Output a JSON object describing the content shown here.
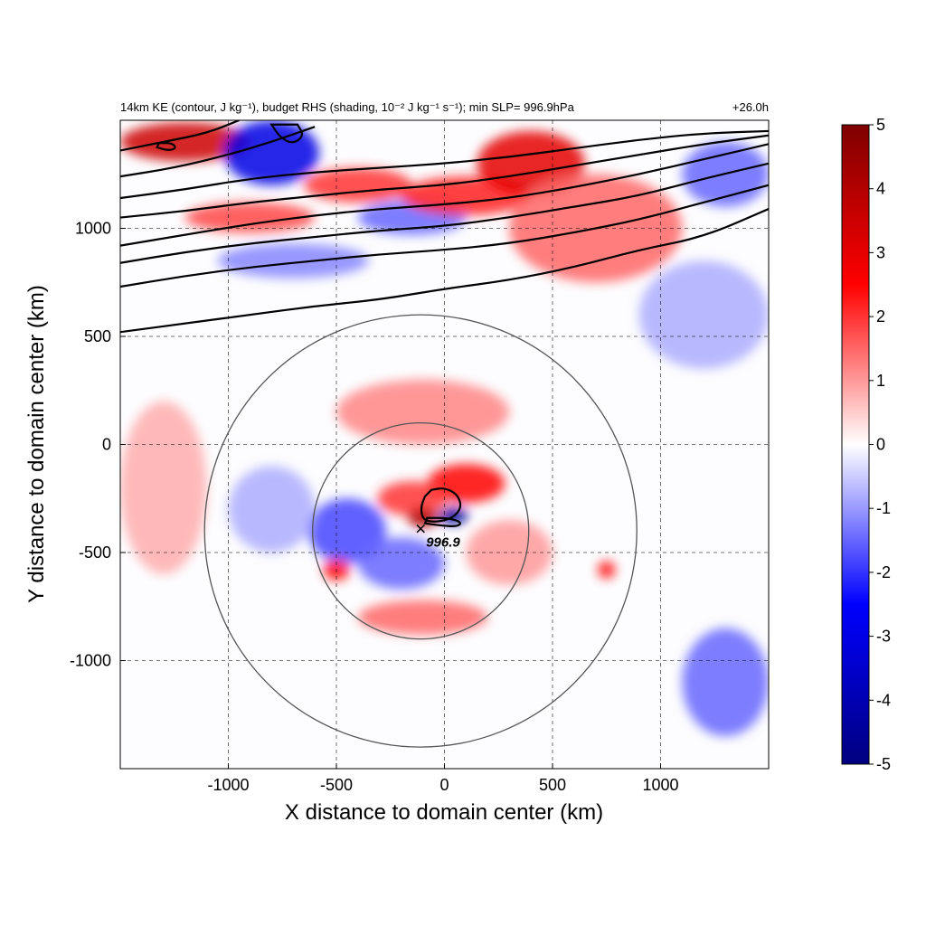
{
  "chart_data": {
    "type": "heatmap",
    "title": "14km KE (contour, J kg⁻¹), budget RHS (shading, 10⁻² J kg⁻¹ s⁻¹); min SLP= 996.9hPa",
    "title_right": "+26.0h",
    "xlabel": "X distance to domain center (km)",
    "ylabel": "Y distance to domain center (km)",
    "xlim": [
      -1500,
      1500
    ],
    "ylim": [
      -1500,
      1500
    ],
    "x_ticks": [
      -1000,
      -500,
      0,
      500,
      1000
    ],
    "y_ticks": [
      1000,
      500,
      0,
      -500,
      -1000
    ],
    "x_tick_labels": [
      "-1000",
      "-500",
      "0",
      "500",
      "1000"
    ],
    "y_tick_labels": [
      "1000",
      "500",
      "0",
      "-500",
      "-1000"
    ],
    "grid": true,
    "colorbar": {
      "min": -5,
      "max": 5,
      "ticks": [
        5,
        4,
        3,
        2,
        1,
        0,
        -1,
        -2,
        -3,
        -4,
        -5
      ],
      "tick_labels": [
        "5",
        "4",
        "3",
        "2",
        "1",
        "0",
        "-1",
        "-2",
        "-3",
        "-4",
        "-5"
      ],
      "colors": [
        "#00007f",
        "#0000ff",
        "#ffffff",
        "#ff0000",
        "#7f0000"
      ],
      "placement": "right"
    },
    "storm_center": {
      "x": -110,
      "y": -390,
      "label": "996.9"
    },
    "range_rings": [
      {
        "cx": -110,
        "cy": -400,
        "r": 500
      },
      {
        "cx": -110,
        "cy": -400,
        "r": 1000
      }
    ],
    "ke_contours": [
      [
        [
          -1500,
          520
        ],
        [
          -1200,
          560
        ],
        [
          -900,
          600
        ],
        [
          -600,
          640
        ],
        [
          -300,
          670
        ],
        [
          0,
          720
        ],
        [
          300,
          760
        ],
        [
          600,
          820
        ],
        [
          900,
          900
        ],
        [
          1200,
          960
        ],
        [
          1500,
          1090
        ]
      ],
      [
        [
          -1500,
          730
        ],
        [
          -1200,
          780
        ],
        [
          -900,
          820
        ],
        [
          -600,
          850
        ],
        [
          -300,
          880
        ],
        [
          0,
          900
        ],
        [
          300,
          930
        ],
        [
          600,
          980
        ],
        [
          900,
          1040
        ],
        [
          1200,
          1120
        ],
        [
          1500,
          1200
        ]
      ],
      [
        [
          -1500,
          840
        ],
        [
          -1200,
          890
        ],
        [
          -900,
          930
        ],
        [
          -600,
          960
        ],
        [
          -300,
          990
        ],
        [
          0,
          1010
        ],
        [
          300,
          1050
        ],
        [
          600,
          1100
        ],
        [
          900,
          1150
        ],
        [
          1200,
          1230
        ],
        [
          1500,
          1300
        ]
      ],
      [
        [
          -1500,
          920
        ],
        [
          -1200,
          970
        ],
        [
          -900,
          1020
        ],
        [
          -600,
          1060
        ],
        [
          -300,
          1090
        ],
        [
          0,
          1110
        ],
        [
          300,
          1140
        ],
        [
          600,
          1190
        ],
        [
          900,
          1250
        ],
        [
          1200,
          1320
        ],
        [
          1500,
          1390
        ]
      ],
      [
        [
          -1500,
          1050
        ],
        [
          -1200,
          1080
        ],
        [
          -900,
          1120
        ],
        [
          -600,
          1150
        ],
        [
          -300,
          1180
        ],
        [
          0,
          1200
        ],
        [
          300,
          1240
        ],
        [
          600,
          1290
        ],
        [
          900,
          1340
        ],
        [
          1200,
          1390
        ],
        [
          1500,
          1430
        ]
      ],
      [
        [
          -1500,
          1140
        ],
        [
          -1200,
          1180
        ],
        [
          -900,
          1230
        ],
        [
          -600,
          1260
        ],
        [
          -300,
          1280
        ],
        [
          0,
          1300
        ],
        [
          300,
          1330
        ],
        [
          600,
          1370
        ],
        [
          900,
          1410
        ],
        [
          1200,
          1440
        ],
        [
          1500,
          1450
        ]
      ],
      [
        [
          -1500,
          1240
        ],
        [
          -1250,
          1280
        ],
        [
          -1000,
          1340
        ],
        [
          -800,
          1400
        ],
        [
          -600,
          1470
        ]
      ],
      [
        [
          -1500,
          1360
        ],
        [
          -1300,
          1400
        ],
        [
          -1100,
          1440
        ],
        [
          -950,
          1500
        ]
      ]
    ],
    "ke_closed_contours": [
      [
        [
          -1330,
          1375
        ],
        [
          -1280,
          1360
        ],
        [
          -1240,
          1370
        ],
        [
          -1260,
          1395
        ],
        [
          -1320,
          1395
        ]
      ],
      [
        [
          -60,
          -210
        ],
        [
          0,
          -200
        ],
        [
          60,
          -230
        ],
        [
          80,
          -290
        ],
        [
          40,
          -340
        ],
        [
          -40,
          -360
        ],
        [
          -100,
          -350
        ],
        [
          -110,
          -290
        ],
        [
          -90,
          -240
        ]
      ],
      [
        [
          -80,
          -340
        ],
        [
          20,
          -340
        ],
        [
          80,
          -360
        ],
        [
          60,
          -380
        ],
        [
          -20,
          -375
        ],
        [
          -90,
          -365
        ]
      ],
      [
        [
          -800,
          1480
        ],
        [
          -760,
          1420
        ],
        [
          -700,
          1390
        ],
        [
          -650,
          1430
        ],
        [
          -680,
          1480
        ]
      ]
    ],
    "blobs": [
      {
        "x": -1200,
        "y": 1400,
        "v": 3.5,
        "rx": 300,
        "ry": 90
      },
      {
        "x": -800,
        "y": 1350,
        "v": -3.0,
        "rx": 220,
        "ry": 150
      },
      {
        "x": -400,
        "y": 1200,
        "v": 2.0,
        "rx": 250,
        "ry": 80
      },
      {
        "x": -150,
        "y": 1050,
        "v": -1.5,
        "rx": 250,
        "ry": 80
      },
      {
        "x": 100,
        "y": 1150,
        "v": 2.2,
        "rx": 300,
        "ry": 90
      },
      {
        "x": 400,
        "y": 1300,
        "v": 3.0,
        "rx": 250,
        "ry": 150
      },
      {
        "x": 700,
        "y": 1000,
        "v": 1.5,
        "rx": 400,
        "ry": 250
      },
      {
        "x": -900,
        "y": 1050,
        "v": 1.8,
        "rx": 300,
        "ry": 70
      },
      {
        "x": -700,
        "y": 850,
        "v": -1.2,
        "rx": 350,
        "ry": 80
      },
      {
        "x": 1300,
        "y": 1250,
        "v": -1.5,
        "rx": 200,
        "ry": 150
      },
      {
        "x": -100,
        "y": 150,
        "v": 1.2,
        "rx": 400,
        "ry": 150
      },
      {
        "x": 100,
        "y": -180,
        "v": 2.5,
        "rx": 180,
        "ry": 90
      },
      {
        "x": -150,
        "y": -250,
        "v": 2.0,
        "rx": 160,
        "ry": 80
      },
      {
        "x": -100,
        "y": -340,
        "v": 4.0,
        "rx": 70,
        "ry": 45
      },
      {
        "x": 40,
        "y": -330,
        "v": -4.5,
        "rx": 70,
        "ry": 40
      },
      {
        "x": -450,
        "y": -400,
        "v": -1.8,
        "rx": 180,
        "ry": 150
      },
      {
        "x": -500,
        "y": -580,
        "v": 2.5,
        "rx": 60,
        "ry": 50
      },
      {
        "x": -200,
        "y": -550,
        "v": -1.5,
        "rx": 200,
        "ry": 120
      },
      {
        "x": -100,
        "y": -800,
        "v": 1.5,
        "rx": 300,
        "ry": 80
      },
      {
        "x": 300,
        "y": -500,
        "v": 1.0,
        "rx": 200,
        "ry": 150
      },
      {
        "x": 750,
        "y": -580,
        "v": 2.5,
        "rx": 40,
        "ry": 40
      },
      {
        "x": 1300,
        "y": -1100,
        "v": -1.5,
        "rx": 200,
        "ry": 250
      },
      {
        "x": 1200,
        "y": 600,
        "v": -0.8,
        "rx": 300,
        "ry": 250
      },
      {
        "x": -1300,
        "y": -200,
        "v": 0.8,
        "rx": 200,
        "ry": 400
      },
      {
        "x": -800,
        "y": -300,
        "v": -0.8,
        "rx": 200,
        "ry": 200
      }
    ]
  }
}
